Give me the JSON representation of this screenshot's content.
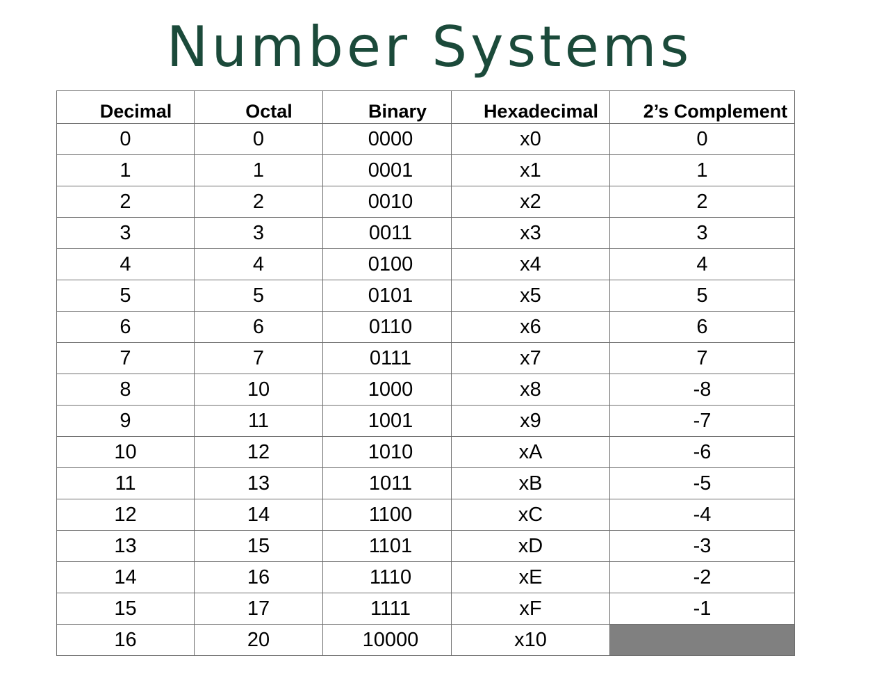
{
  "title": "Number Systems",
  "colors": {
    "title": "#1b4a3a",
    "empty_cell": "#808080",
    "grid_line": "#6e6e6e"
  },
  "table": {
    "headers": [
      "Decimal",
      "Octal",
      "Binary",
      "Hexadecimal",
      "2’s Complement"
    ],
    "rows": [
      [
        "0",
        "0",
        "0000",
        "x0",
        "0"
      ],
      [
        "1",
        "1",
        "0001",
        "x1",
        "1"
      ],
      [
        "2",
        "2",
        "0010",
        "x2",
        "2"
      ],
      [
        "3",
        "3",
        "0011",
        "x3",
        "3"
      ],
      [
        "4",
        "4",
        "0100",
        "x4",
        "4"
      ],
      [
        "5",
        "5",
        "0101",
        "x5",
        "5"
      ],
      [
        "6",
        "6",
        "0110",
        "x6",
        "6"
      ],
      [
        "7",
        "7",
        "0111",
        "x7",
        "7"
      ],
      [
        "8",
        "10",
        "1000",
        "x8",
        "-8"
      ],
      [
        "9",
        "11",
        "1001",
        "x9",
        "-7"
      ],
      [
        "10",
        "12",
        "1010",
        "xA",
        "-6"
      ],
      [
        "11",
        "13",
        "1011",
        "xB",
        "-5"
      ],
      [
        "12",
        "14",
        "1100",
        "xC",
        "-4"
      ],
      [
        "13",
        "15",
        "1101",
        "xD",
        "-3"
      ],
      [
        "14",
        "16",
        "1110",
        "xE",
        "-2"
      ],
      [
        "15",
        "17",
        "1111",
        "xF",
        "-1"
      ],
      [
        "16",
        "20",
        "10000",
        "x10",
        ""
      ]
    ]
  }
}
